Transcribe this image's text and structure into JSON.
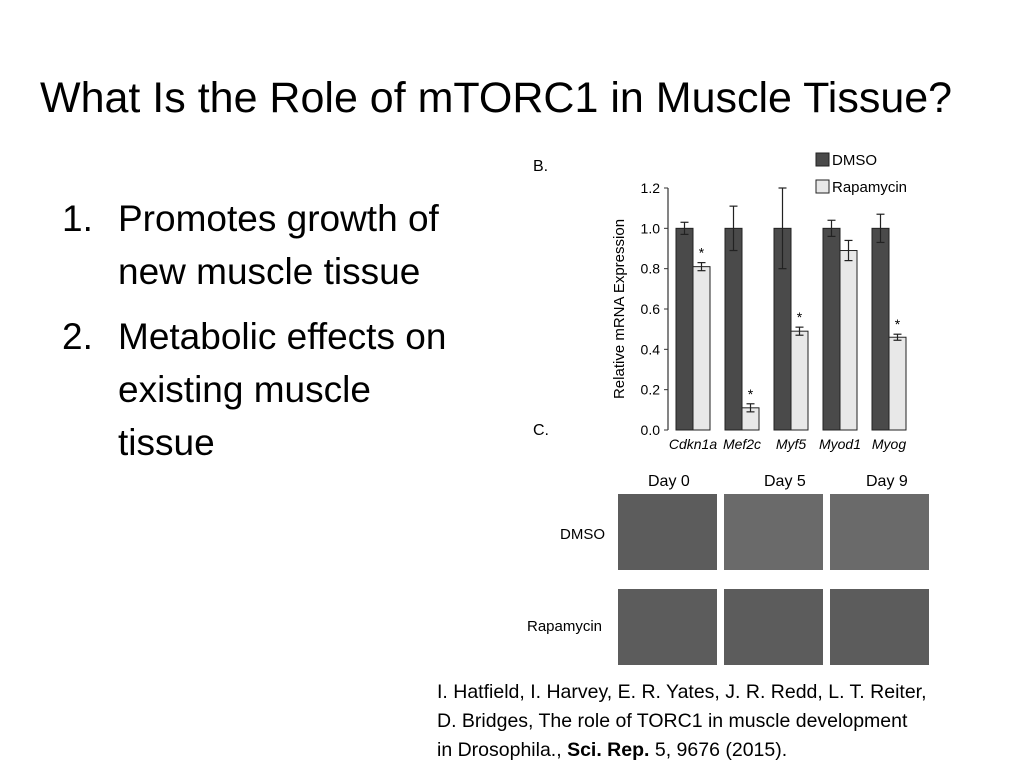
{
  "slide": {
    "title": "What Is the Role of mTORC1 in Muscle Tissue?",
    "bullets": [
      {
        "number": "1.",
        "text": "Promotes growth of new muscle tissue"
      },
      {
        "number": "2.",
        "text": "Metabolic effects on existing muscle tissue"
      }
    ]
  },
  "figure": {
    "panel_b_label": "B.",
    "panel_c_label": "C.",
    "images": {
      "columns": [
        "Day 0",
        "Day 5",
        "Day 9"
      ],
      "rows": [
        "DMSO",
        "Rapamycin"
      ]
    }
  },
  "chart_data": {
    "type": "bar",
    "title": "",
    "xlabel": "",
    "ylabel": "Relative mRNA Expression",
    "ylim": [
      0.0,
      1.2
    ],
    "yticks": [
      "0.0",
      "0.2",
      "0.4",
      "0.6",
      "0.8",
      "1.0",
      "1.2"
    ],
    "categories": [
      "Cdkn1a",
      "Mef2c",
      "Myf5",
      "Myod1",
      "Myog"
    ],
    "legend_position": "top-right",
    "series": [
      {
        "name": "DMSO",
        "color": "#4a4a4a",
        "values": [
          1.0,
          1.0,
          1.0,
          1.0,
          1.0
        ],
        "errors": [
          0.03,
          0.11,
          0.2,
          0.04,
          0.07
        ],
        "significance": [
          "",
          "",
          "",
          "",
          ""
        ]
      },
      {
        "name": "Rapamycin",
        "color": "#e8e8e8",
        "values": [
          0.81,
          0.11,
          0.49,
          0.89,
          0.46
        ],
        "errors": [
          0.02,
          0.02,
          0.02,
          0.05,
          0.015
        ],
        "significance": [
          "*",
          "*",
          "*",
          "",
          "*"
        ]
      }
    ]
  },
  "citation": {
    "line1": "I. Hatfield, I. Harvey, E. R. Yates, J. R. Redd, L. T. Reiter,",
    "line2": "D. Bridges, The role of TORC1 in muscle development",
    "line3_prefix": "in Drosophila., ",
    "journal": "Sci. Rep.",
    "line3_suffix": " 5, 9676 (2015)."
  }
}
